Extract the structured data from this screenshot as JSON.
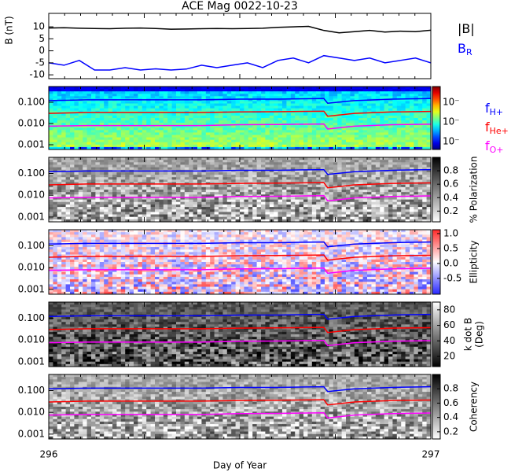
{
  "chart_data": [
    {
      "type": "line",
      "title": "ACE Mag 0022-10-23",
      "ylabel": "B (nT)",
      "x": [
        296,
        296.04,
        296.08,
        296.12,
        296.16,
        296.2,
        296.24,
        296.28,
        296.32,
        296.36,
        296.4,
        296.44,
        296.48,
        296.52,
        296.56,
        296.6,
        296.64,
        296.68,
        296.72,
        296.76,
        296.8,
        296.84,
        296.88,
        296.92,
        296.96,
        297
      ],
      "xlim": [
        296,
        297
      ],
      "ylim": [
        -11.6,
        15.6
      ],
      "yticks": [
        10,
        5,
        0,
        -5,
        -10
      ],
      "series": [
        {
          "name": "|B|",
          "color": "#000000",
          "values": [
            9.5,
            9.6,
            9.4,
            9.3,
            9.2,
            9.4,
            9.5,
            9.3,
            9.0,
            9.1,
            9.2,
            9.3,
            9.2,
            9.3,
            9.4,
            9.8,
            10.0,
            10.2,
            8.5,
            7.5,
            8.0,
            8.5,
            7.8,
            8.2,
            8.0,
            8.6
          ]
        },
        {
          "name": "B",
          "subscript": "R",
          "color": "#0000ff",
          "values": [
            -5,
            -6,
            -4,
            -8,
            -8,
            -7,
            -8,
            -7.5,
            -8,
            -7.6,
            -6,
            -7,
            -6,
            -5,
            -7,
            -4,
            -3,
            -5,
            -2,
            -3,
            -4,
            -3,
            -5,
            -4,
            -3,
            -5
          ]
        }
      ]
    },
    {
      "type": "spectrogram",
      "colormap": "jet",
      "log_y": true,
      "x": [
        296,
        296.1,
        296.2,
        296.3,
        296.4,
        296.5,
        296.6,
        296.72,
        296.73,
        296.8,
        296.9,
        297
      ],
      "xlim": [
        296,
        297
      ],
      "ylim": [
        0.0006,
        0.55
      ],
      "yticks": [
        {
          "value": 0.1,
          "label": "0.100"
        },
        {
          "value": 0.01,
          "label": "0.010"
        },
        {
          "value": 0.001,
          "label": "0.001"
        }
      ],
      "colorbar_labels": [
        "10⁻",
        "10⁻",
        "10⁻"
      ],
      "series": [
        {
          "name": "f",
          "subscript": "H+",
          "color": "#0000ff",
          "values": [
            0.12,
            0.13,
            0.13,
            0.13,
            0.13,
            0.14,
            0.14,
            0.15,
            0.09,
            0.12,
            0.14,
            0.15
          ]
        },
        {
          "name": "f",
          "subscript": "He+",
          "color": "#ff0000",
          "values": [
            0.03,
            0.033,
            0.033,
            0.033,
            0.033,
            0.035,
            0.036,
            0.038,
            0.022,
            0.03,
            0.035,
            0.037
          ]
        },
        {
          "name": "f",
          "subscript": "O+",
          "color": "#ff00ff",
          "values": [
            0.0075,
            0.008,
            0.008,
            0.008,
            0.008,
            0.0088,
            0.009,
            0.0095,
            0.0055,
            0.0075,
            0.0088,
            0.0093
          ]
        }
      ]
    },
    {
      "type": "spectrogram",
      "colormap": "gray_r",
      "log_y": true,
      "x": [
        296,
        296.1,
        296.2,
        296.3,
        296.4,
        296.5,
        296.6,
        296.72,
        296.73,
        296.8,
        296.9,
        297
      ],
      "xlim": [
        296,
        297
      ],
      "ylim": [
        0.0006,
        0.55
      ],
      "yticks": [
        {
          "value": 0.1,
          "label": "0.100"
        },
        {
          "value": 0.01,
          "label": "0.010"
        },
        {
          "value": 0.001,
          "label": "0.001"
        }
      ],
      "clim": [
        0.04,
        1.0
      ],
      "cticks": [
        0.8,
        0.6,
        0.4,
        0.2
      ],
      "colorbar_title": "% Polarization",
      "series": [
        {
          "color": "#0000ff",
          "values": [
            0.12,
            0.13,
            0.13,
            0.13,
            0.13,
            0.14,
            0.14,
            0.15,
            0.09,
            0.12,
            0.14,
            0.15
          ]
        },
        {
          "color": "#ff0000",
          "values": [
            0.03,
            0.033,
            0.033,
            0.033,
            0.033,
            0.035,
            0.036,
            0.038,
            0.022,
            0.03,
            0.035,
            0.037
          ]
        },
        {
          "color": "#ff00ff",
          "values": [
            0.0075,
            0.008,
            0.008,
            0.008,
            0.008,
            0.0088,
            0.009,
            0.0095,
            0.0055,
            0.0075,
            0.0088,
            0.0093
          ]
        }
      ]
    },
    {
      "type": "spectrogram",
      "colormap": "bwr",
      "log_y": true,
      "x": [
        296,
        296.1,
        296.2,
        296.3,
        296.4,
        296.5,
        296.6,
        296.72,
        296.73,
        296.8,
        296.9,
        297
      ],
      "xlim": [
        296,
        297
      ],
      "ylim": [
        0.0006,
        0.55
      ],
      "yticks": [
        {
          "value": 0.1,
          "label": "0.100"
        },
        {
          "value": 0.01,
          "label": "0.010"
        },
        {
          "value": 0.001,
          "label": "0.001"
        }
      ],
      "clim": [
        -1.03,
        1.13
      ],
      "cticks": [
        {
          "value": 1,
          "label": "1.0"
        },
        0.5,
        {
          "value": 0,
          "label": "0.0"
        },
        -0.5
      ],
      "colorbar_title": "Ellipticity",
      "series": [
        {
          "color": "#0000ff",
          "values": [
            0.12,
            0.13,
            0.13,
            0.13,
            0.13,
            0.14,
            0.14,
            0.15,
            0.09,
            0.12,
            0.14,
            0.15
          ]
        },
        {
          "color": "#ff0000",
          "values": [
            0.03,
            0.033,
            0.033,
            0.033,
            0.033,
            0.035,
            0.036,
            0.038,
            0.022,
            0.03,
            0.035,
            0.037
          ]
        },
        {
          "color": "#ff00ff",
          "values": [
            0.0075,
            0.008,
            0.008,
            0.008,
            0.008,
            0.0088,
            0.009,
            0.0095,
            0.0055,
            0.0075,
            0.0088,
            0.0093
          ]
        }
      ]
    },
    {
      "type": "spectrogram",
      "colormap": "gray",
      "log_y": true,
      "x": [
        296,
        296.1,
        296.2,
        296.3,
        296.4,
        296.5,
        296.6,
        296.72,
        296.73,
        296.8,
        296.9,
        297
      ],
      "xlim": [
        296,
        297
      ],
      "ylim": [
        0.0006,
        0.55
      ],
      "yticks": [
        {
          "value": 0.1,
          "label": "0.100"
        },
        {
          "value": 0.01,
          "label": "0.010"
        },
        {
          "value": 0.001,
          "label": "0.001"
        }
      ],
      "clim": [
        6.8,
        90
      ],
      "cticks": [
        80,
        60,
        40,
        20
      ],
      "colorbar_title": [
        "k dot B",
        "(Deg)"
      ],
      "series": [
        {
          "color": "#0000ff",
          "values": [
            0.12,
            0.13,
            0.13,
            0.13,
            0.13,
            0.14,
            0.14,
            0.15,
            0.09,
            0.12,
            0.14,
            0.15
          ]
        },
        {
          "color": "#ff0000",
          "values": [
            0.03,
            0.033,
            0.033,
            0.033,
            0.033,
            0.035,
            0.036,
            0.038,
            0.022,
            0.03,
            0.035,
            0.037
          ]
        },
        {
          "color": "#ff00ff",
          "values": [
            0.0075,
            0.008,
            0.008,
            0.008,
            0.008,
            0.0088,
            0.009,
            0.0095,
            0.0055,
            0.0075,
            0.0088,
            0.0093
          ]
        }
      ]
    },
    {
      "type": "spectrogram",
      "colormap": "gray_r",
      "log_y": true,
      "x": [
        296,
        296.1,
        296.2,
        296.3,
        296.4,
        296.5,
        296.6,
        296.72,
        296.73,
        296.8,
        296.9,
        297
      ],
      "xlim": [
        296,
        297
      ],
      "ylim": [
        0.0006,
        0.55
      ],
      "yticks": [
        {
          "value": 0.1,
          "label": "0.100"
        },
        {
          "value": 0.01,
          "label": "0.010"
        },
        {
          "value": 0.001,
          "label": "0.001"
        }
      ],
      "clim": [
        0.1,
        1.0
      ],
      "cticks": [
        0.8,
        0.6,
        0.4,
        0.2
      ],
      "colorbar_title": "Coherency",
      "xticks": [
        296,
        297
      ],
      "xlabel": "Day of Year",
      "series": [
        {
          "color": "#0000ff",
          "values": [
            0.12,
            0.13,
            0.13,
            0.13,
            0.13,
            0.14,
            0.14,
            0.15,
            0.09,
            0.12,
            0.14,
            0.15
          ]
        },
        {
          "color": "#ff0000",
          "values": [
            0.03,
            0.033,
            0.033,
            0.033,
            0.033,
            0.035,
            0.036,
            0.038,
            0.022,
            0.03,
            0.035,
            0.037
          ]
        },
        {
          "color": "#ff00ff",
          "values": [
            0.0075,
            0.008,
            0.008,
            0.008,
            0.008,
            0.0088,
            0.009,
            0.0095,
            0.0055,
            0.0075,
            0.0088,
            0.0093
          ]
        }
      ]
    }
  ]
}
